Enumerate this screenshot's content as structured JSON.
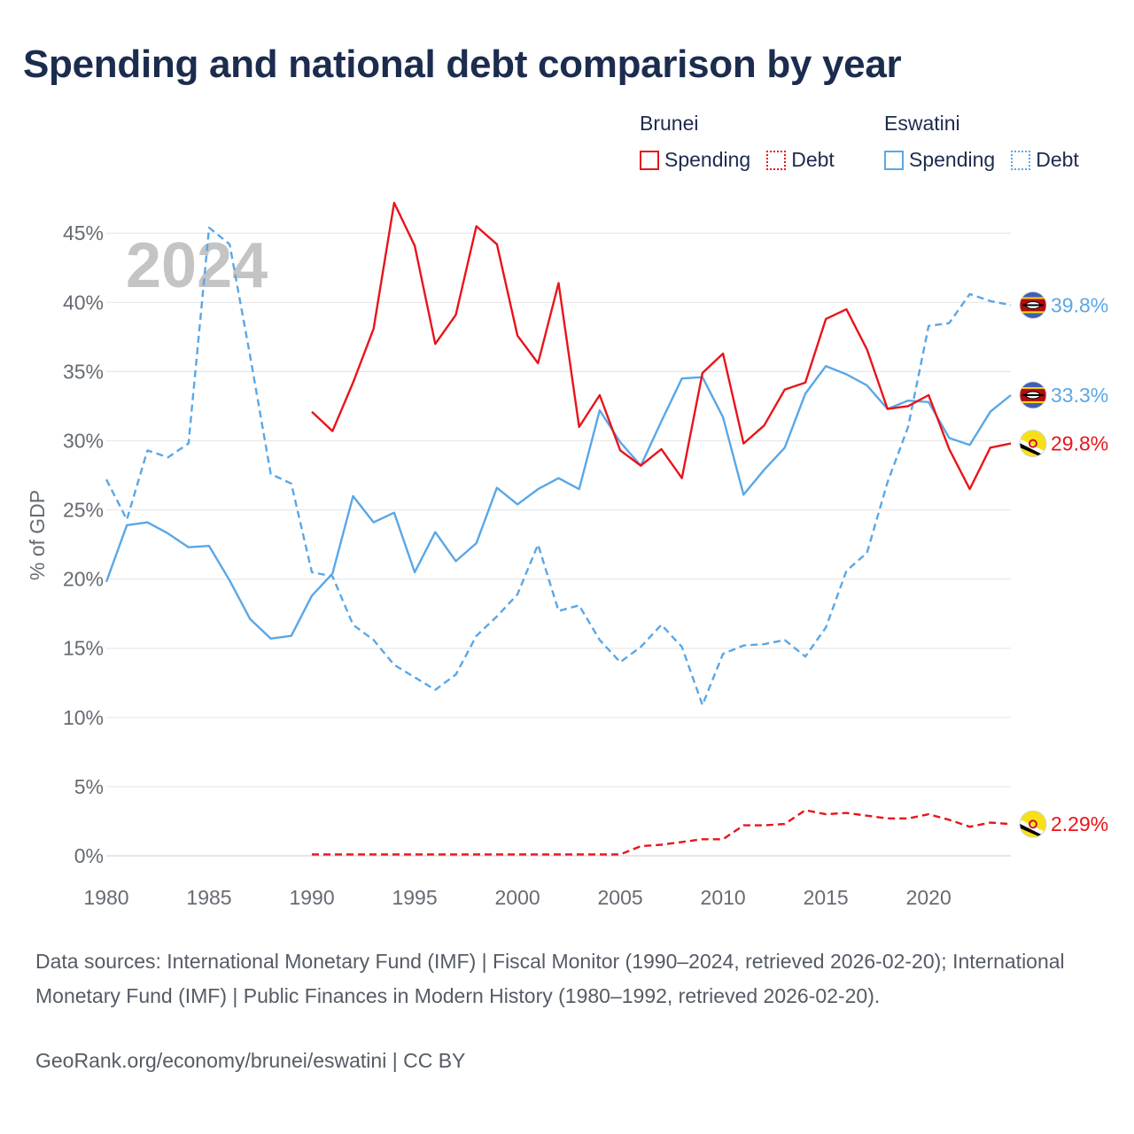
{
  "title": "Spending and national debt comparison by year",
  "legend": {
    "groups": [
      {
        "name": "Brunei",
        "color": "#e8141a",
        "items": [
          {
            "label": "Spending",
            "style": "solid"
          },
          {
            "label": "Debt",
            "style": "dotted"
          }
        ]
      },
      {
        "name": "Eswatini",
        "color": "#5aa7e6",
        "items": [
          {
            "label": "Spending",
            "style": "solid"
          },
          {
            "label": "Debt",
            "style": "dotted"
          }
        ]
      }
    ]
  },
  "footer": {
    "sources": "Data sources: International Monetary Fund (IMF) | Fiscal Monitor (1990–2024, retrieved 2026-02-20); International Monetary Fund (IMF) | Public Finances in Modern History (1980–1992, retrieved 2026-02-20).",
    "credit": "GeoRank.org/economy/brunei/eswatini | CC BY"
  },
  "chart_data": {
    "type": "line",
    "title": "Spending and national debt comparison by year",
    "xlabel": "",
    "ylabel": "% of GDP",
    "year_watermark": "2024",
    "xlim": [
      1980,
      2024
    ],
    "ylim": [
      0,
      47
    ],
    "x_ticks": [
      1980,
      1985,
      1990,
      1995,
      2000,
      2005,
      2010,
      2015,
      2020
    ],
    "x_tick_labels": [
      "1980",
      "1985",
      "1990",
      "1995",
      "2000",
      "2005",
      "2010",
      "2015",
      "2020"
    ],
    "y_ticks": [
      0,
      5,
      10,
      15,
      20,
      25,
      30,
      35,
      40,
      45
    ],
    "y_tick_labels": [
      "0%",
      "5%",
      "10%",
      "15%",
      "20%",
      "25%",
      "30%",
      "35%",
      "40%",
      "45%"
    ],
    "grid": true,
    "series": [
      {
        "name": "Eswatini Debt",
        "country": "Eswatini",
        "color": "#5aa7e6",
        "dash": "dashed",
        "end_label": "39.8%",
        "x": [
          1980,
          1981,
          1982,
          1983,
          1984,
          1985,
          1986,
          1987,
          1988,
          1989,
          1990,
          1991,
          1992,
          1993,
          1994,
          1995,
          1996,
          1997,
          1998,
          1999,
          2000,
          2001,
          2002,
          2003,
          2004,
          2005,
          2006,
          2007,
          2008,
          2009,
          2010,
          2011,
          2012,
          2013,
          2014,
          2015,
          2016,
          2017,
          2018,
          2019,
          2020,
          2021,
          2022,
          2023,
          2024
        ],
        "values": [
          27.2,
          24.3,
          29.3,
          28.8,
          29.8,
          45.4,
          44.2,
          36.1,
          27.6,
          26.9,
          20.5,
          20.2,
          16.7,
          15.6,
          13.8,
          12.9,
          12.0,
          13.1,
          15.9,
          17.3,
          18.9,
          22.5,
          17.7,
          18.1,
          15.6,
          14.0,
          15.1,
          16.7,
          15.1,
          10.9,
          14.6,
          15.2,
          15.3,
          15.6,
          14.4,
          16.5,
          20.6,
          21.9,
          27.0,
          31.0,
          38.3,
          38.5,
          40.6,
          40.1,
          39.8
        ]
      },
      {
        "name": "Eswatini Spending",
        "country": "Eswatini",
        "color": "#5aa7e6",
        "dash": "solid",
        "end_label": "33.3%",
        "x": [
          1980,
          1981,
          1982,
          1983,
          1984,
          1985,
          1986,
          1987,
          1988,
          1989,
          1990,
          1991,
          1992,
          1993,
          1994,
          1995,
          1996,
          1997,
          1998,
          1999,
          2000,
          2001,
          2002,
          2003,
          2004,
          2005,
          2006,
          2007,
          2008,
          2009,
          2010,
          2011,
          2012,
          2013,
          2014,
          2015,
          2016,
          2017,
          2018,
          2019,
          2020,
          2021,
          2022,
          2023,
          2024
        ],
        "values": [
          19.8,
          23.9,
          24.1,
          23.3,
          22.3,
          22.4,
          19.9,
          17.1,
          15.7,
          15.9,
          18.8,
          20.4,
          26.0,
          24.1,
          24.8,
          20.5,
          23.4,
          21.3,
          22.6,
          26.6,
          25.4,
          26.5,
          27.3,
          26.5,
          32.2,
          29.9,
          28.2,
          31.4,
          34.5,
          34.6,
          31.7,
          26.1,
          27.9,
          29.5,
          33.4,
          35.4,
          34.8,
          34.0,
          32.3,
          32.9,
          32.8,
          30.2,
          29.7,
          32.1,
          33.3
        ]
      },
      {
        "name": "Brunei Spending",
        "country": "Brunei",
        "color": "#e8141a",
        "dash": "solid",
        "end_label": "29.8%",
        "x": [
          1990,
          1991,
          1992,
          1993,
          1994,
          1995,
          1996,
          1997,
          1998,
          1999,
          2000,
          2001,
          2002,
          2003,
          2004,
          2005,
          2006,
          2007,
          2008,
          2009,
          2010,
          2011,
          2012,
          2013,
          2014,
          2015,
          2016,
          2017,
          2018,
          2019,
          2020,
          2021,
          2022,
          2023,
          2024
        ],
        "values": [
          32.1,
          30.7,
          34.2,
          38.1,
          47.2,
          44.1,
          37.0,
          39.1,
          45.5,
          44.2,
          37.6,
          35.6,
          41.4,
          31.0,
          33.3,
          29.3,
          28.2,
          29.4,
          27.3,
          34.9,
          36.3,
          29.8,
          31.1,
          33.7,
          34.2,
          38.8,
          39.5,
          36.6,
          32.3,
          32.5,
          33.3,
          29.4,
          26.5,
          29.5,
          29.8
        ]
      },
      {
        "name": "Brunei Debt",
        "country": "Brunei",
        "color": "#e8141a",
        "dash": "dashed",
        "end_label": "2.29%",
        "x": [
          1990,
          1991,
          1992,
          1993,
          1994,
          1995,
          1996,
          1997,
          1998,
          1999,
          2000,
          2001,
          2002,
          2003,
          2004,
          2005,
          2006,
          2007,
          2008,
          2009,
          2010,
          2011,
          2012,
          2013,
          2014,
          2015,
          2016,
          2017,
          2018,
          2019,
          2020,
          2021,
          2022,
          2023,
          2024
        ],
        "values": [
          0.1,
          0.1,
          0.1,
          0.1,
          0.1,
          0.1,
          0.1,
          0.1,
          0.1,
          0.1,
          0.1,
          0.1,
          0.1,
          0.1,
          0.1,
          0.1,
          0.7,
          0.8,
          1.0,
          1.2,
          1.2,
          2.2,
          2.2,
          2.3,
          3.3,
          3.0,
          3.1,
          2.9,
          2.7,
          2.7,
          3.0,
          2.6,
          2.1,
          2.4,
          2.29
        ]
      }
    ]
  }
}
